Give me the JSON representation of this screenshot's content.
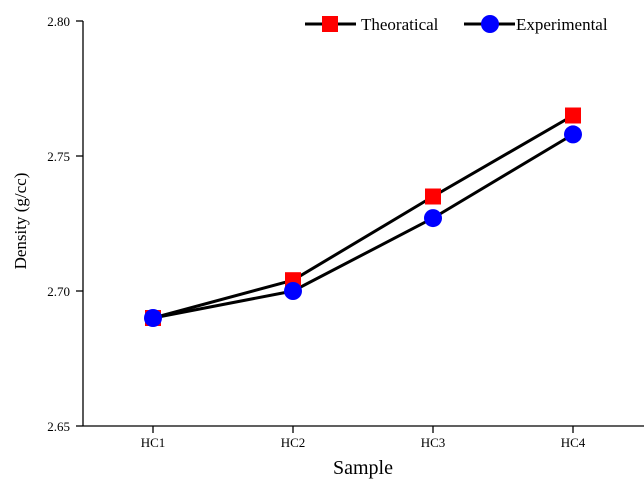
{
  "chart_data": {
    "type": "line",
    "title": "",
    "xlabel": "Sample",
    "ylabel": "Density (g/cc)",
    "categories": [
      "HC1",
      "HC2",
      "HC3",
      "HC4"
    ],
    "ylim": [
      2.65,
      2.8
    ],
    "yticks": [
      "2.65",
      "2.70",
      "2.75",
      "2.80"
    ],
    "grid": false,
    "legend_position": "top-right",
    "series": [
      {
        "name": "Theoratical",
        "values": [
          2.69,
          2.704,
          2.735,
          2.765
        ],
        "color": "#ff0000",
        "marker": "square"
      },
      {
        "name": "Experimental",
        "values": [
          2.69,
          2.7,
          2.727,
          2.758
        ],
        "color": "#0000ff",
        "marker": "circle"
      }
    ],
    "line_color": "#000000"
  }
}
